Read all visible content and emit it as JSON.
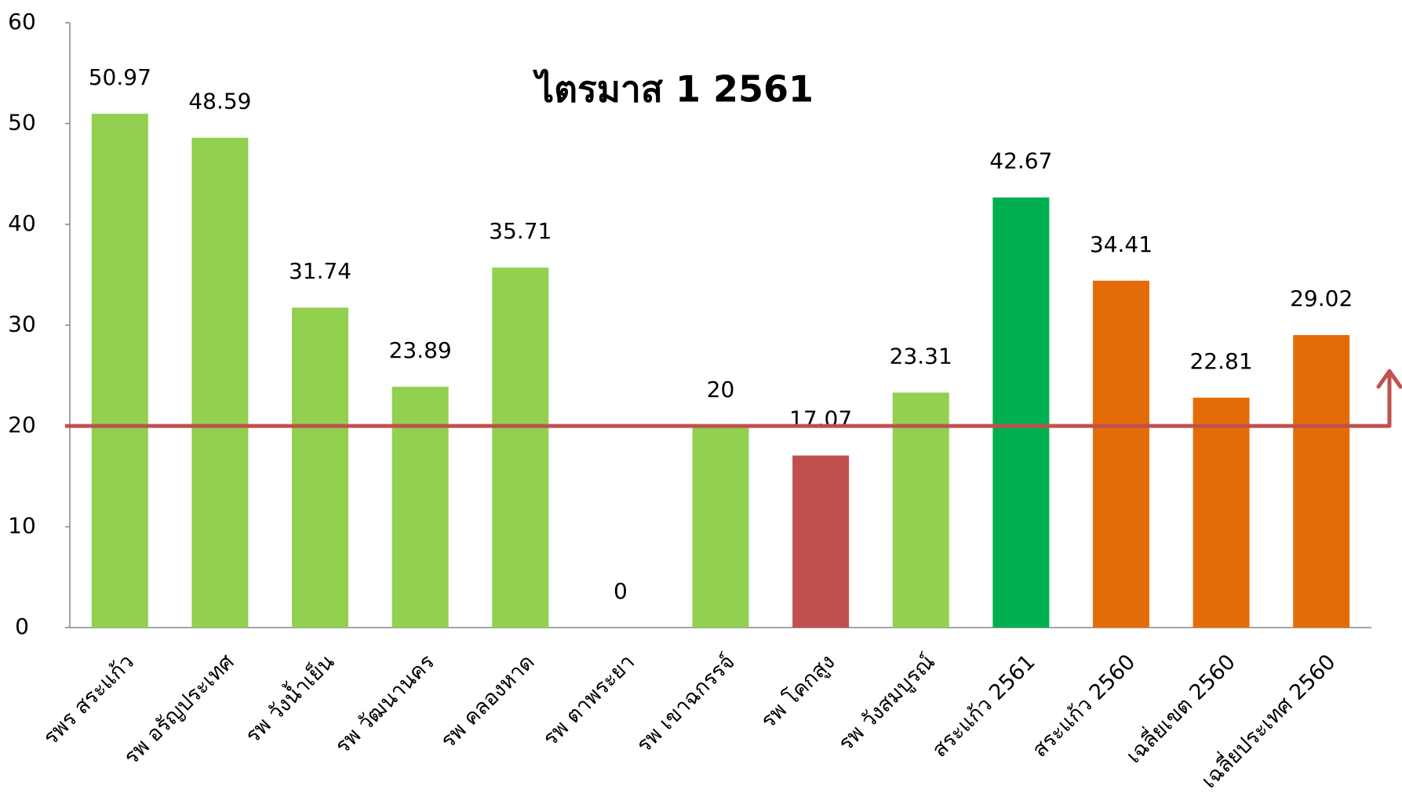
{
  "chart_data": {
    "type": "bar",
    "title": "ไตรมาส 1 2561",
    "categories": [
      "รพร สระแก้ว",
      "รพ อรัญประเทศ",
      "รพ วังน้ำเย็น",
      "รพ วัฒนานคร",
      "รพ คลองหาด",
      "รพ ตาพระยา",
      "รพ เขาฉกรรจ์",
      "รพ โคกสูง",
      "รพ วังสมบูรณ์",
      "สระแก้ว 2561",
      "สระแก้ว 2560",
      "เฉลี่ยเขต 2560",
      "เฉลี่ยประเทศ 2560"
    ],
    "values": [
      50.97,
      48.59,
      31.74,
      23.89,
      35.71,
      0,
      20,
      17.07,
      23.31,
      42.67,
      34.41,
      22.81,
      29.02
    ],
    "colors": [
      "#92d050",
      "#92d050",
      "#92d050",
      "#92d050",
      "#92d050",
      "#92d050",
      "#92d050",
      "#c0504d",
      "#92d050",
      "#00b050",
      "#e36c09",
      "#e36c09",
      "#e36c09"
    ],
    "ylim": [
      0,
      60
    ],
    "yticks": [
      0,
      10,
      20,
      30,
      40,
      50,
      60
    ],
    "grid": false,
    "reference_line": {
      "value": 20,
      "color": "#c0504d"
    }
  }
}
